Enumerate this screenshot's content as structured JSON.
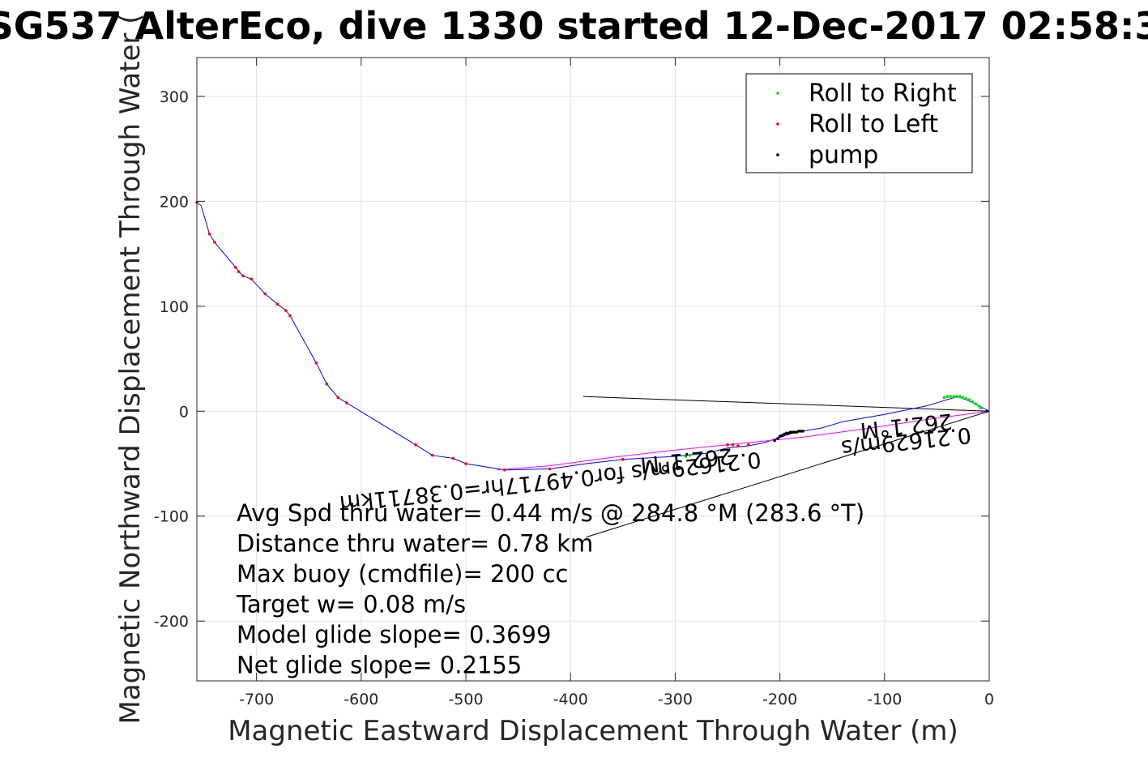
{
  "chart_data": {
    "type": "line",
    "title": "SG537 AlterEco, dive 1330 started 12-Dec-2017 02:58:3",
    "xlabel": "Magnetic Eastward Displacement Through Water (m)",
    "ylabel": "Magnetic Northward Displacement Through Water (",
    "xlim": [
      -757,
      0
    ],
    "ylim": [
      -257,
      337
    ],
    "xticks": [
      -700,
      -600,
      -500,
      -400,
      -300,
      -200,
      -100,
      0
    ],
    "yticks": [
      -200,
      -100,
      0,
      100,
      200,
      300
    ],
    "grid": true,
    "legend_position": "top-right",
    "legend": [
      {
        "label": "Roll to Right",
        "color": "#00dd00"
      },
      {
        "label": "Roll to Left",
        "color": "#ff0000"
      },
      {
        "label": "pump",
        "color": "#000000"
      }
    ],
    "series": [
      {
        "name": "track",
        "color": "#0000ff",
        "x": [
          -757,
          -753,
          -745,
          -740,
          -720,
          -717,
          -713,
          -705,
          -692,
          -680,
          -672,
          -668,
          -643,
          -633,
          -622,
          -614,
          -548,
          -532,
          -512,
          -500,
          -463,
          -420,
          -385,
          -350,
          -300,
          -270,
          -250,
          -230,
          -215,
          -200,
          -185,
          -160,
          -140,
          -100,
          -60,
          -30,
          -15,
          0
        ],
        "y": [
          199,
          196,
          169,
          161,
          137,
          133,
          129,
          126,
          112,
          102,
          96,
          91,
          46,
          26,
          13,
          8,
          -32,
          -42,
          -45,
          -50,
          -56,
          -55,
          -50,
          -46,
          -43,
          -40,
          -35,
          -33,
          -30,
          -25,
          -20,
          -16,
          -10,
          -3,
          5,
          14,
          8,
          0
        ]
      },
      {
        "name": "return",
        "color": "#ff00ff",
        "x": [
          0,
          -60,
          -120,
          -180,
          -240,
          -300,
          -360,
          -420,
          -470
        ],
        "y": [
          0,
          -8,
          -17,
          -25,
          -31,
          -37,
          -44,
          -52,
          -56
        ]
      }
    ],
    "points": {
      "roll_right": {
        "x": [
          -43,
          -40,
          -37,
          -34,
          -31,
          -28,
          -25,
          -22,
          -19,
          -16,
          -13,
          -10,
          -8,
          -290,
          -286
        ],
        "y": [
          13,
          14,
          14,
          14,
          14,
          14,
          13,
          12,
          11,
          9,
          7,
          5,
          3,
          -43,
          -42
        ]
      },
      "roll_left": {
        "x": [
          -757,
          -745,
          -740,
          -720,
          -717,
          -713,
          -705,
          -692,
          -680,
          -672,
          -668,
          -643,
          -633,
          -622,
          -614,
          -548,
          -532,
          -512,
          -500,
          -463,
          -420,
          -350,
          -250,
          -245,
          -240,
          -230
        ],
        "y": [
          199,
          169,
          161,
          137,
          133,
          129,
          126,
          112,
          102,
          96,
          91,
          46,
          26,
          13,
          8,
          -32,
          -42,
          -45,
          -50,
          -56,
          -55,
          -46,
          -32,
          -32,
          -33,
          -32
        ]
      },
      "pump": {
        "x": [
          -205,
          -202,
          -200,
          -198,
          -196,
          -194,
          -192,
          -190,
          -188,
          -186,
          -184,
          -182,
          -180,
          -178,
          -2
        ],
        "y": [
          -28,
          -26,
          -24,
          -23,
          -22,
          -21,
          -21,
          -20,
          -20,
          -20,
          -20,
          -19,
          -19,
          -19,
          0
        ]
      }
    },
    "reference_lines": [
      {
        "x": [
          -388,
          0
        ],
        "y": [
          14,
          0
        ]
      },
      {
        "x": [
          -385,
          0
        ],
        "y": [
          -120,
          0
        ]
      }
    ],
    "annotations": [
      {
        "text": "262.1°M",
        "x": -290,
        "y": -40
      },
      {
        "text": "0.21629m/s for0.49717hr=0.38711km",
        "x": -420,
        "y": -60
      },
      {
        "text": "262.1°M",
        "x": -80,
        "y": -7
      },
      {
        "text": "0.21629m/s",
        "x": -80,
        "y": -22
      }
    ],
    "stats": [
      "Avg Spd thru water=  0.44 m/s @ 284.8 °M (283.6 °T)",
      "Distance thru water=  0.78 km",
      "Max buoy (cmdfile)= 200 cc",
      "Target w= 0.08 m/s",
      "Model glide slope= 0.3699",
      "Net glide slope= 0.2155"
    ]
  }
}
